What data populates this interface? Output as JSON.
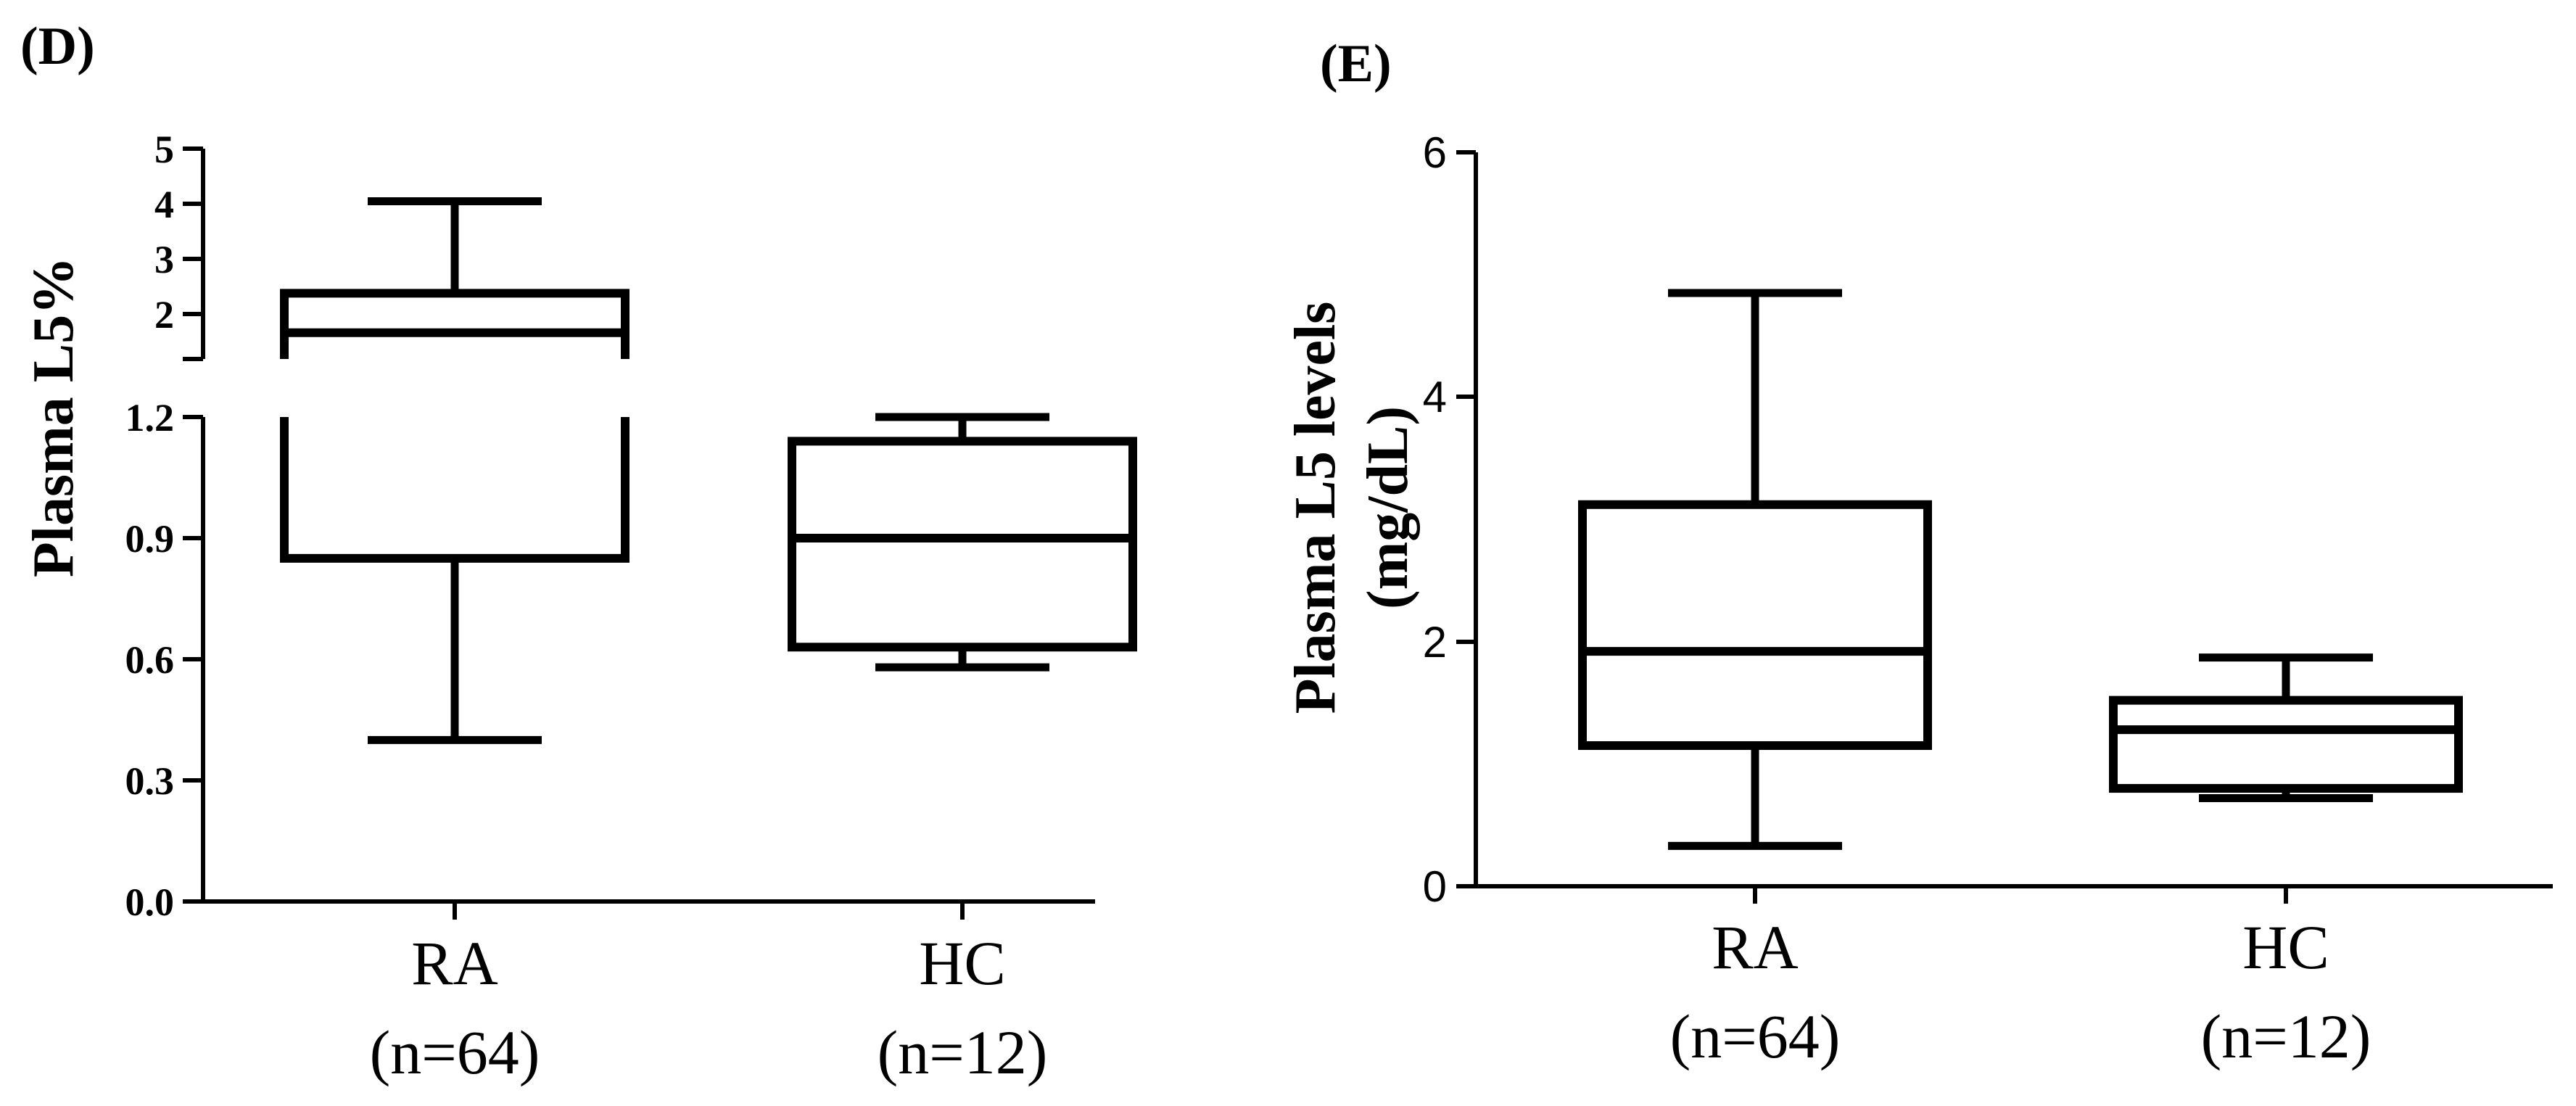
{
  "chart_data": [
    {
      "panel_label": "(D)",
      "type": "box",
      "ylabel": "Plasma L5%",
      "y_axis_break": true,
      "ylim_lower": [
        0,
        1.2
      ],
      "ylim_upper": [
        1,
        5
      ],
      "yticks_lower": [
        "0.0",
        "0.3",
        "0.6",
        "0.9",
        "1.2"
      ],
      "yticks_upper": [
        "2",
        "3",
        "4",
        "5"
      ],
      "categories": [
        {
          "label": "RA",
          "n_label": "(n=64)"
        },
        {
          "label": "HC",
          "n_label": "(n=12)"
        }
      ],
      "boxes": [
        {
          "group": "RA",
          "whisker_low": 0.4,
          "q1": 0.85,
          "median": 1.5,
          "q3": 2.25,
          "whisker_high": 4.0
        },
        {
          "group": "HC",
          "whisker_low": 0.58,
          "q1": 0.63,
          "median": 0.9,
          "q3": 1.14,
          "whisker_high": 1.2
        }
      ]
    },
    {
      "panel_label": "(E)",
      "type": "box",
      "ylabel_lines": [
        "Plasma L5 levels",
        "(mg/dL)"
      ],
      "ylim": [
        0,
        6
      ],
      "yticks": [
        "0",
        "2",
        "4",
        "6"
      ],
      "categories": [
        {
          "label": "RA",
          "n_label": "(n=64)"
        },
        {
          "label": "HC",
          "n_label": "(n=12)"
        }
      ],
      "boxes": [
        {
          "group": "RA",
          "whisker_low": 0.33,
          "q1": 1.15,
          "median": 1.92,
          "q3": 3.12,
          "whisker_high": 4.85
        },
        {
          "group": "HC",
          "whisker_low": 0.72,
          "q1": 0.8,
          "median": 1.28,
          "q3": 1.52,
          "whisker_high": 1.87
        }
      ]
    }
  ]
}
